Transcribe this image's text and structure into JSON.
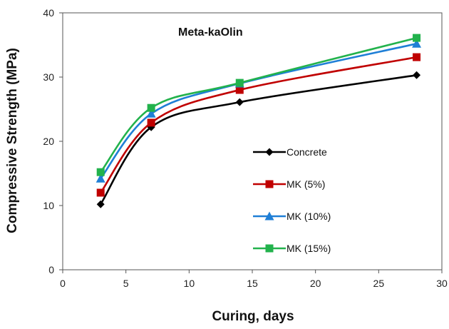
{
  "chart_data": {
    "type": "line",
    "title": "Meta-kaOlin",
    "xlabel": "Curing, days",
    "ylabel": "Compressive Strength (MPa)",
    "xlim": [
      0,
      30
    ],
    "ylim": [
      0,
      40
    ],
    "xticks": [
      0,
      5,
      10,
      15,
      20,
      25,
      30
    ],
    "yticks": [
      0,
      10,
      20,
      30,
      40
    ],
    "x": [
      3,
      7,
      14,
      28
    ],
    "grid": false,
    "legend_position": "right",
    "series": [
      {
        "name": "Concrete",
        "values": [
          10.2,
          22.2,
          26.1,
          30.3
        ],
        "color": "#000000",
        "marker": "diamond"
      },
      {
        "name": "MK (5%)",
        "values": [
          12.0,
          22.9,
          28.0,
          33.1
        ],
        "color": "#c00000",
        "marker": "square"
      },
      {
        "name": "MK (10%)",
        "values": [
          14.2,
          24.3,
          29.0,
          35.2
        ],
        "color": "#1f7fd6",
        "marker": "triangle"
      },
      {
        "name": "MK (15%)",
        "values": [
          15.2,
          25.2,
          29.1,
          36.1
        ],
        "color": "#22b24c",
        "marker": "square"
      }
    ]
  }
}
